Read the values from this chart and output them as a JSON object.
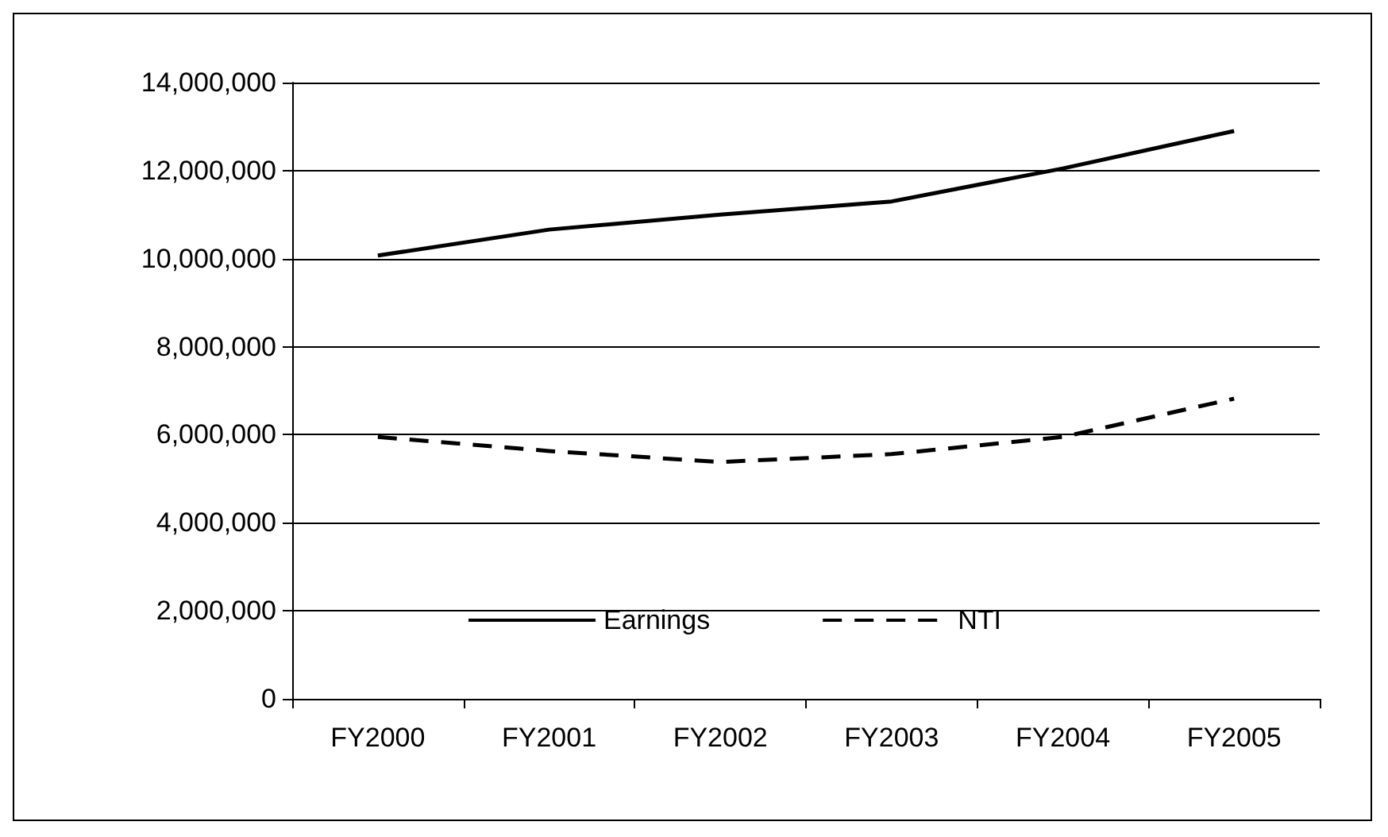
{
  "chart_data": {
    "type": "line",
    "categories": [
      "FY2000",
      "FY2001",
      "FY2002",
      "FY2003",
      "FY2004",
      "FY2005"
    ],
    "series": [
      {
        "name": "Earnings",
        "color": "#000000",
        "line_style": "solid",
        "values": [
          10070000,
          10660000,
          11000000,
          11300000,
          12050000,
          12900000
        ]
      },
      {
        "name": "NTI",
        "color": "#000000",
        "line_style": "dashed",
        "values": [
          5950000,
          5630000,
          5380000,
          5560000,
          5950000,
          6820000
        ]
      }
    ],
    "ylim": [
      0,
      14000000
    ],
    "yticks": [
      0,
      {
        "value": 2000000,
        "label": "2,000,000"
      },
      {
        "value": 4000000,
        "label": "4,000,000"
      },
      {
        "value": 6000000,
        "label": "6,000,000"
      },
      {
        "value": 8000000,
        "label": "8,000,000"
      },
      {
        "value": 10000000,
        "label": "10,000,000"
      },
      {
        "value": 12000000,
        "label": "12,000,000"
      },
      {
        "value": 14000000,
        "label": "14,000,000"
      }
    ],
    "grid": "y",
    "legend": "bottom",
    "marker": "none"
  }
}
